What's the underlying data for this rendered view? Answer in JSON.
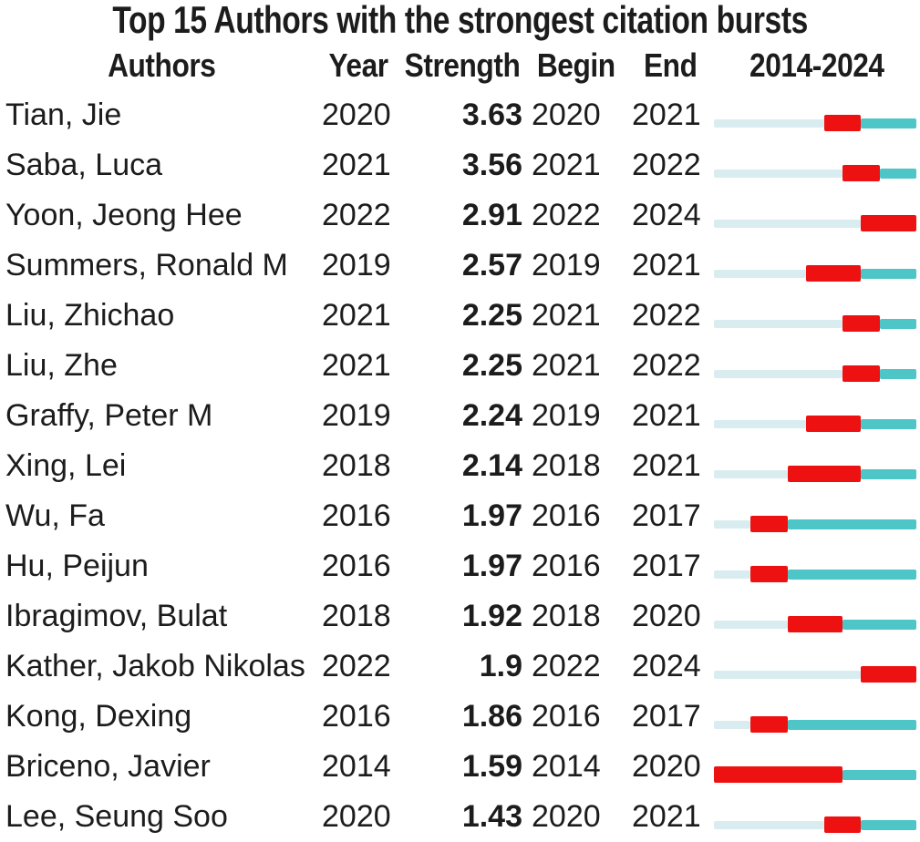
{
  "header": {
    "authors": "Authors",
    "year": "Year",
    "strength": "Strength",
    "begin": "Begin",
    "end": "End",
    "range": "2014-2024"
  },
  "colors": {
    "text": "#1c1c1c",
    "bar_before_burst": "#d9edf0",
    "bar_burst": "#ee1111",
    "bar_after_burst": "#4ec5c6",
    "background": "#ffffff"
  },
  "chart_data": {
    "type": "table",
    "title": "Top 15 Authors with the strongest citation bursts",
    "columns": [
      "Authors",
      "Year",
      "Strength",
      "Begin",
      "End",
      "2014-2024"
    ],
    "timeline_range": [
      2014,
      2024
    ],
    "legend": {
      "before_burst": "pale segment: years before burst",
      "burst": "red segment: burst interval (Begin..End)",
      "after_burst": "teal segment: years after burst"
    },
    "rows": [
      {
        "author": "Tian, Jie",
        "year": "2020",
        "strength": "3.63",
        "begin": 2020,
        "end": 2021
      },
      {
        "author": "Saba, Luca",
        "year": "2021",
        "strength": "3.56",
        "begin": 2021,
        "end": 2022
      },
      {
        "author": "Yoon, Jeong Hee",
        "year": "2022",
        "strength": "2.91",
        "begin": 2022,
        "end": 2024
      },
      {
        "author": "Summers, Ronald M",
        "year": "2019",
        "strength": "2.57",
        "begin": 2019,
        "end": 2021
      },
      {
        "author": "Liu, Zhichao",
        "year": "2021",
        "strength": "2.25",
        "begin": 2021,
        "end": 2022
      },
      {
        "author": "Liu, Zhe",
        "year": "2021",
        "strength": "2.25",
        "begin": 2021,
        "end": 2022
      },
      {
        "author": "Graffy, Peter M",
        "year": "2019",
        "strength": "2.24",
        "begin": 2019,
        "end": 2021
      },
      {
        "author": "Xing, Lei",
        "year": "2018",
        "strength": "2.14",
        "begin": 2018,
        "end": 2021
      },
      {
        "author": "Wu, Fa",
        "year": "2016",
        "strength": "1.97",
        "begin": 2016,
        "end": 2017
      },
      {
        "author": "Hu, Peijun",
        "year": "2016",
        "strength": "1.97",
        "begin": 2016,
        "end": 2017
      },
      {
        "author": "Ibragimov, Bulat",
        "year": "2018",
        "strength": "1.92",
        "begin": 2018,
        "end": 2020
      },
      {
        "author": "Kather, Jakob Nikolas",
        "year": "2022",
        "strength": "1.9",
        "begin": 2022,
        "end": 2024
      },
      {
        "author": "Kong, Dexing",
        "year": "2016",
        "strength": "1.86",
        "begin": 2016,
        "end": 2017
      },
      {
        "author": "Briceno, Javier",
        "year": "2014",
        "strength": "1.59",
        "begin": 2014,
        "end": 2020
      },
      {
        "author": "Lee, Seung Soo",
        "year": "2020",
        "strength": "1.43",
        "begin": 2020,
        "end": 2021
      }
    ]
  }
}
